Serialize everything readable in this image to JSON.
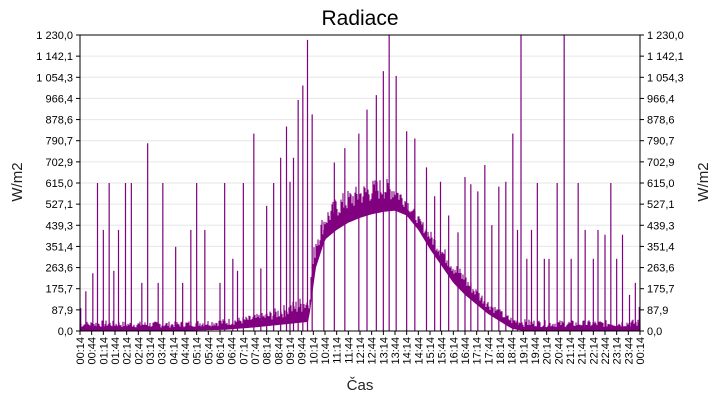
{
  "chart_data": {
    "type": "area",
    "title": "Radiace",
    "xlabel": "Čas",
    "ylabel": "W/m2",
    "ylabel_right": "W/m2",
    "ylim": [
      0,
      1230
    ],
    "y_ticks": [
      "0,0",
      "87,9",
      "175,7",
      "263,6",
      "351,4",
      "439,3",
      "527,1",
      "615,0",
      "702,9",
      "790,7",
      "878,6",
      "966,4",
      "1 054,3",
      "1 142,1",
      "1 230,0"
    ],
    "x_ticks": [
      "00:14",
      "00:44",
      "01:14",
      "01:44",
      "02:14",
      "02:44",
      "03:14",
      "03:44",
      "04:14",
      "04:44",
      "05:14",
      "05:44",
      "06:14",
      "06:44",
      "07:14",
      "07:44",
      "08:14",
      "08:44",
      "09:14",
      "09:44",
      "10:14",
      "10:44",
      "11:14",
      "11:44",
      "12:14",
      "12:44",
      "13:14",
      "13:44",
      "14:14",
      "14:44",
      "15:14",
      "15:44",
      "16:14",
      "16:44",
      "17:14",
      "17:44",
      "18:14",
      "18:44",
      "19:14",
      "19:44",
      "20:14",
      "20:44",
      "21:14",
      "21:44",
      "22:14",
      "22:44",
      "23:14",
      "23:44",
      "00:14"
    ],
    "grid": true,
    "legend": "none",
    "colors": {
      "series": "#800080",
      "grid": "#e6e6e6",
      "axis": "#000000"
    },
    "series": [
      {
        "x_unit": "hours since 00:14",
        "baseline_profile": [
          [
            0,
            0
          ],
          [
            4,
            0
          ],
          [
            6.2,
            5
          ],
          [
            7.5,
            15
          ],
          [
            9,
            30
          ],
          [
            9.8,
            38
          ],
          [
            10.1,
            260
          ],
          [
            10.5,
            380
          ],
          [
            11,
            420
          ],
          [
            11.5,
            450
          ],
          [
            12,
            470
          ],
          [
            12.5,
            485
          ],
          [
            13,
            495
          ],
          [
            13.5,
            500
          ],
          [
            14,
            480
          ],
          [
            14.5,
            420
          ],
          [
            15,
            340
          ],
          [
            15.5,
            270
          ],
          [
            16,
            200
          ],
          [
            16.5,
            150
          ],
          [
            17,
            110
          ],
          [
            17.5,
            70
          ],
          [
            18,
            40
          ],
          [
            18.5,
            10
          ],
          [
            19,
            0
          ],
          [
            24,
            0
          ]
        ],
        "upper_profile": [
          [
            0,
            40
          ],
          [
            1,
            45
          ],
          [
            2,
            40
          ],
          [
            3,
            40
          ],
          [
            4,
            40
          ],
          [
            5,
            45
          ],
          [
            6,
            50
          ],
          [
            7,
            60
          ],
          [
            8,
            80
          ],
          [
            9,
            120
          ],
          [
            9.8,
            160
          ],
          [
            10.1,
            420
          ],
          [
            10.5,
            500
          ],
          [
            11,
            560
          ],
          [
            11.5,
            590
          ],
          [
            12,
            610
          ],
          [
            12.5,
            630
          ],
          [
            13,
            640
          ],
          [
            13.5,
            620
          ],
          [
            14,
            560
          ],
          [
            14.5,
            480
          ],
          [
            15,
            420
          ],
          [
            15.5,
            360
          ],
          [
            16,
            300
          ],
          [
            16.5,
            240
          ],
          [
            17,
            180
          ],
          [
            17.5,
            130
          ],
          [
            18,
            90
          ],
          [
            18.5,
            60
          ],
          [
            19,
            50
          ],
          [
            20,
            45
          ],
          [
            21,
            45
          ],
          [
            22,
            45
          ],
          [
            23,
            45
          ],
          [
            24,
            50
          ]
        ],
        "spikes": [
          [
            0.03,
            95
          ],
          [
            0.25,
            165
          ],
          [
            0.55,
            240
          ],
          [
            0.75,
            615
          ],
          [
            1.0,
            420
          ],
          [
            1.25,
            615
          ],
          [
            1.45,
            250
          ],
          [
            1.65,
            420
          ],
          [
            1.95,
            615
          ],
          [
            2.2,
            615
          ],
          [
            2.65,
            200
          ],
          [
            2.9,
            780
          ],
          [
            3.35,
            200
          ],
          [
            3.55,
            615
          ],
          [
            4.1,
            350
          ],
          [
            4.4,
            200
          ],
          [
            4.75,
            420
          ],
          [
            5.0,
            615
          ],
          [
            5.35,
            420
          ],
          [
            6.0,
            200
          ],
          [
            6.2,
            615
          ],
          [
            6.55,
            300
          ],
          [
            6.75,
            250
          ],
          [
            7.0,
            615
          ],
          [
            7.45,
            820
          ],
          [
            7.75,
            260
          ],
          [
            8.0,
            520
          ],
          [
            8.3,
            615
          ],
          [
            8.6,
            720
          ],
          [
            8.85,
            850
          ],
          [
            9.0,
            620
          ],
          [
            9.15,
            720
          ],
          [
            9.35,
            960
          ],
          [
            9.55,
            1020
          ],
          [
            9.75,
            1210
          ],
          [
            9.95,
            900
          ],
          [
            10.45,
            420
          ],
          [
            10.9,
            700
          ],
          [
            11.35,
            760
          ],
          [
            11.95,
            820
          ],
          [
            12.3,
            920
          ],
          [
            12.7,
            980
          ],
          [
            13.0,
            1080
          ],
          [
            13.25,
            1230
          ],
          [
            13.55,
            1060
          ],
          [
            14.0,
            830
          ],
          [
            14.35,
            800
          ],
          [
            14.85,
            680
          ],
          [
            15.2,
            560
          ],
          [
            15.45,
            620
          ],
          [
            15.8,
            480
          ],
          [
            16.2,
            410
          ],
          [
            16.5,
            640
          ],
          [
            16.75,
            610
          ],
          [
            17.05,
            580
          ],
          [
            17.35,
            690
          ],
          [
            17.65,
            440
          ],
          [
            17.95,
            600
          ],
          [
            18.25,
            620
          ],
          [
            18.55,
            820
          ],
          [
            18.75,
            420
          ],
          [
            18.9,
            1230
          ],
          [
            19.15,
            300
          ],
          [
            19.35,
            420
          ],
          [
            19.6,
            615
          ],
          [
            19.9,
            300
          ],
          [
            20.1,
            300
          ],
          [
            20.45,
            615
          ],
          [
            20.75,
            1230
          ],
          [
            21.05,
            300
          ],
          [
            21.35,
            615
          ],
          [
            21.65,
            420
          ],
          [
            22.0,
            300
          ],
          [
            22.2,
            420
          ],
          [
            22.5,
            400
          ],
          [
            22.75,
            615
          ],
          [
            23.0,
            300
          ],
          [
            23.25,
            400
          ],
          [
            23.55,
            150
          ],
          [
            23.8,
            200
          ],
          [
            23.97,
            100
          ]
        ]
      }
    ]
  }
}
